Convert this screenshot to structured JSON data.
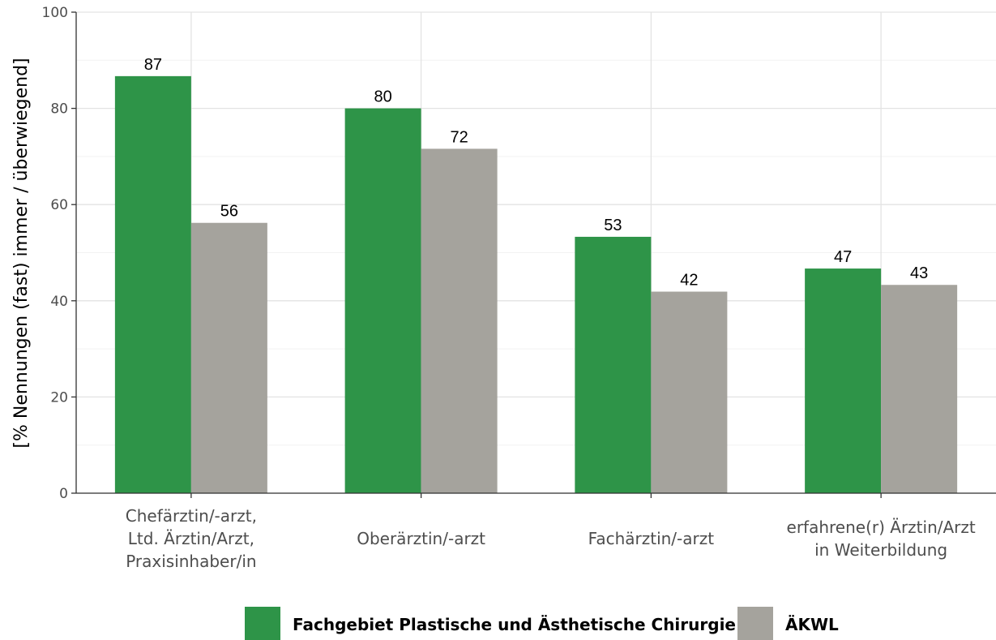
{
  "chart_data": {
    "type": "bar",
    "title": "",
    "xlabel": "",
    "ylabel": "[% Nennungen (fast) immer / überwiegend]",
    "ylim": [
      0,
      100
    ],
    "yticks": [
      0,
      20,
      40,
      60,
      80,
      100
    ],
    "grid": true,
    "legend_position": "bottom",
    "categories": [
      [
        "Chefärztin/-arzt,",
        "Ltd. Ärztin/Arzt,",
        "Praxisinhaber/in"
      ],
      [
        "Oberärztin/-arzt"
      ],
      [
        "Fachärztin/-arzt"
      ],
      [
        "erfahrene(r) Ärztin/Arzt",
        "in Weiterbildung"
      ]
    ],
    "series": [
      {
        "name": "Fachgebiet Plastische und Ästhetische Chirurgie",
        "color": "#2e9448",
        "values": [
          86.7,
          80.0,
          53.3,
          46.7
        ],
        "labels": [
          "87",
          "80",
          "53",
          "47"
        ]
      },
      {
        "name": "ÄKWL",
        "color": "#a5a39d",
        "values": [
          56.2,
          71.6,
          41.9,
          43.3
        ],
        "labels": [
          "56",
          "72",
          "42",
          "43"
        ]
      }
    ]
  }
}
